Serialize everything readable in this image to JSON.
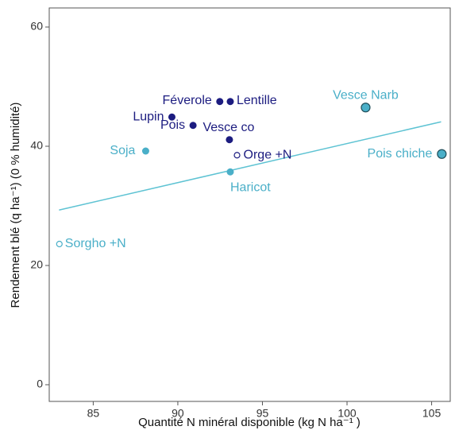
{
  "chart_data": {
    "type": "scatter",
    "x_label": "Quantité N minéral disponible (kg N  ha⁻¹ )",
    "y_label": "Rendement blé (q ha⁻¹) (0 % humidité)",
    "xlim": [
      82.4,
      106.1
    ],
    "ylim": [
      -2.8,
      63.2
    ],
    "xticks": [
      85,
      90,
      95,
      100,
      105
    ],
    "yticks": [
      0,
      20,
      40,
      60
    ],
    "points": [
      {
        "label": "Féverole",
        "x": 92.48,
        "y": 47.5,
        "color": "#1c1c80",
        "marker": "filled"
      },
      {
        "label": "Lentille",
        "x": 93.1,
        "y": 47.5,
        "color": "#1c1c80",
        "marker": "filled"
      },
      {
        "label": "Lupin",
        "x": 89.65,
        "y": 44.9,
        "color": "#1c1c80",
        "marker": "filled"
      },
      {
        "label": "Pois",
        "x": 90.9,
        "y": 43.5,
        "color": "#1c1c80",
        "marker": "filled"
      },
      {
        "label": "Vesce co",
        "x": 93.05,
        "y": 41.1,
        "color": "#1c1c80",
        "marker": "filled"
      },
      {
        "label": "Soja",
        "x": 88.1,
        "y": 39.2,
        "color": "#4aafc8",
        "marker": "filled"
      },
      {
        "label": "Orge +N",
        "x": 93.5,
        "y": 38.5,
        "color": "#1c1c80",
        "marker": "hollow"
      },
      {
        "label": "Haricot",
        "x": 93.1,
        "y": 35.7,
        "color": "#4aafc8",
        "marker": "filled"
      },
      {
        "label": "Vesce Narb",
        "x": 101.1,
        "y": 46.5,
        "color": "#4aafc8",
        "marker": "outlined"
      },
      {
        "label": "Pois chiche",
        "x": 105.6,
        "y": 38.7,
        "color": "#4aafc8",
        "marker": "outlined"
      },
      {
        "label": "Sorgho +N",
        "x": 83.0,
        "y": 23.6,
        "color": "#4aafc8",
        "marker": "hollow"
      }
    ],
    "fit": {
      "x": [
        82.98,
        105.56
      ],
      "y": [
        29.3,
        44.1
      ],
      "color": "#5ec3d3"
    }
  }
}
